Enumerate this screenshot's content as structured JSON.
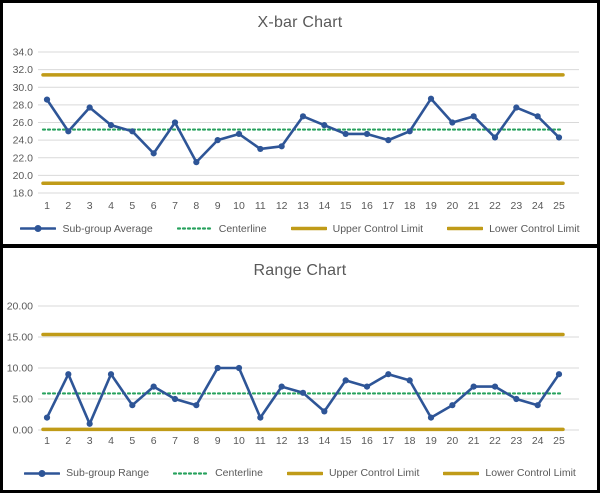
{
  "colors": {
    "series_blue": "#2E5597",
    "centerline_green": "#28A25E",
    "limit_gold": "#C09B18",
    "gridline_gray": "#D9D9D9",
    "text_gray": "#595959",
    "frame_black": "#000000",
    "panel_white": "#FFFFFF"
  },
  "chart_data": [
    {
      "type": "line",
      "title": "X-bar Chart",
      "x": [
        1,
        2,
        3,
        4,
        5,
        6,
        7,
        8,
        9,
        10,
        11,
        12,
        13,
        14,
        15,
        16,
        17,
        18,
        19,
        20,
        21,
        22,
        23,
        24,
        25
      ],
      "series": [
        {
          "name": "Sub-group Average",
          "style": "line-marker",
          "color_key": "series_blue",
          "values": [
            28.6,
            25.0,
            27.7,
            25.7,
            25.0,
            22.5,
            26.0,
            21.5,
            24.0,
            24.7,
            23.0,
            23.3,
            26.7,
            25.7,
            24.7,
            24.7,
            24.0,
            25.0,
            28.7,
            26.0,
            26.7,
            24.3,
            27.7,
            26.7,
            24.3
          ]
        },
        {
          "name": "Centerline",
          "style": "dotted",
          "color_key": "centerline_green",
          "constant": 25.2
        },
        {
          "name": "Upper Control Limit",
          "style": "thick",
          "color_key": "limit_gold",
          "constant": 31.4
        },
        {
          "name": "Lower Control Limit",
          "style": "thick",
          "color_key": "limit_gold",
          "constant": 19.1
        }
      ],
      "ylim": [
        18,
        34
      ],
      "yticks": [
        18,
        20,
        22,
        24,
        26,
        28,
        30,
        32,
        34
      ],
      "ytick_decimals": 1,
      "grid": "horizontal",
      "legend_position": "bottom"
    },
    {
      "type": "line",
      "title": "Range Chart",
      "x": [
        1,
        2,
        3,
        4,
        5,
        6,
        7,
        8,
        9,
        10,
        11,
        12,
        13,
        14,
        15,
        16,
        17,
        18,
        19,
        20,
        21,
        22,
        23,
        24,
        25
      ],
      "series": [
        {
          "name": "Sub-group Range",
          "style": "line-marker",
          "color_key": "series_blue",
          "values": [
            2,
            9,
            1,
            9,
            4,
            7,
            5,
            4,
            10,
            10,
            2,
            7,
            6,
            3,
            8,
            7,
            9,
            8,
            2,
            4,
            7,
            7,
            5,
            4,
            9
          ]
        },
        {
          "name": "Centerline",
          "style": "dotted",
          "color_key": "centerline_green",
          "constant": 5.9
        },
        {
          "name": "Upper Control Limit",
          "style": "thick",
          "color_key": "limit_gold",
          "constant": 15.4
        },
        {
          "name": "Lower Control Limit",
          "style": "thick",
          "color_key": "limit_gold",
          "constant": 0.1
        }
      ],
      "ylim": [
        0,
        20
      ],
      "yticks": [
        0,
        5,
        10,
        15,
        20
      ],
      "ytick_decimals": 2,
      "grid": "horizontal",
      "legend_position": "bottom"
    }
  ]
}
